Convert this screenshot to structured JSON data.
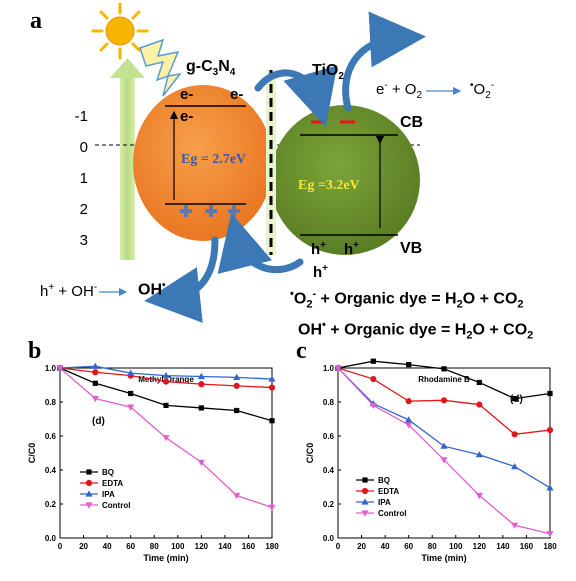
{
  "figure": {
    "panel_a": "a",
    "panel_b": "b",
    "panel_c": "c"
  },
  "diagram": {
    "material_left": "g-C3N4",
    "material_right": "TiO2",
    "axis_ticks": [
      "-1",
      "0",
      "1",
      "2",
      "3"
    ],
    "electron_left_1": "e-",
    "electron_left_2": "e-",
    "electron_left_3": "e-",
    "gap_left": "Eg = 2.7eV",
    "gap_right": "Eg =3.2eV",
    "cb_label": "CB",
    "vb_label": "VB",
    "hole_1": "h+",
    "hole_2": "h+",
    "hole_3": "h+",
    "reaction_superoxide": "e- + O2 → •O2-",
    "reaction_hydroxyl": "h+ + OH- → OH•",
    "equation_1": "•O2- + Organic dye = H2O + CO2",
    "equation_2": "OH• + Organic dye = H2O + CO2",
    "colors": {
      "left_sphere": "#f28a2e",
      "right_sphere": "#6a8f2e",
      "arrow": "#3b78b5",
      "sun": "#f7b500"
    }
  },
  "chart_data": [
    {
      "type": "line",
      "title": "Methyl Orange",
      "inset_label": "(d)",
      "xlabel": "Time (min)",
      "ylabel": "C/C0",
      "x": [
        0,
        30,
        60,
        90,
        120,
        150,
        180
      ],
      "xlim": [
        0,
        180
      ],
      "ylim": [
        0.0,
        1.0
      ],
      "xticks": [
        "0",
        "20",
        "40",
        "60",
        "80",
        "100",
        "120",
        "140",
        "160",
        "180"
      ],
      "yticks": [
        "0.0",
        "0.2",
        "0.4",
        "0.6",
        "0.8",
        "1.0"
      ],
      "legend_position": "bottom-left",
      "series": [
        {
          "name": "BQ",
          "color": "#000000",
          "marker": "square",
          "values": [
            1.0,
            0.91,
            0.85,
            0.78,
            0.765,
            0.75,
            0.69
          ]
        },
        {
          "name": "EDTA",
          "color": "#e3161b",
          "marker": "circle",
          "values": [
            1.0,
            0.975,
            0.955,
            0.92,
            0.905,
            0.895,
            0.885
          ]
        },
        {
          "name": "IPA",
          "color": "#3366cc",
          "marker": "triangle-up",
          "values": [
            1.0,
            1.01,
            0.97,
            0.955,
            0.95,
            0.945,
            0.935
          ]
        },
        {
          "name": "Control",
          "color": "#e060d0",
          "marker": "triangle-down",
          "values": [
            1.0,
            0.82,
            0.77,
            0.59,
            0.445,
            0.25,
            0.18
          ]
        }
      ]
    },
    {
      "type": "line",
      "title": "Rhodamine B",
      "inset_label": "(d)",
      "xlabel": "Time (min)",
      "ylabel": "C/C0",
      "x": [
        0,
        30,
        60,
        90,
        120,
        150,
        180
      ],
      "xlim": [
        0,
        180
      ],
      "ylim": [
        0.0,
        1.0
      ],
      "xticks": [
        "0",
        "20",
        "40",
        "60",
        "80",
        "100",
        "120",
        "140",
        "160",
        "180"
      ],
      "yticks": [
        "0.0",
        "0.2",
        "0.4",
        "0.6",
        "0.8",
        "1.0"
      ],
      "legend_position": "bottom-left",
      "series": [
        {
          "name": "BQ",
          "color": "#000000",
          "marker": "square",
          "values": [
            1.0,
            1.04,
            1.02,
            0.995,
            0.915,
            0.82,
            0.85
          ]
        },
        {
          "name": "EDTA",
          "color": "#e3161b",
          "marker": "circle",
          "values": [
            1.0,
            0.935,
            0.805,
            0.81,
            0.785,
            0.61,
            0.635
          ]
        },
        {
          "name": "IPA",
          "color": "#3366cc",
          "marker": "triangle-up",
          "values": [
            1.0,
            0.79,
            0.695,
            0.54,
            0.49,
            0.42,
            0.295
          ]
        },
        {
          "name": "Control",
          "color": "#e060d0",
          "marker": "triangle-down",
          "values": [
            1.0,
            0.78,
            0.665,
            0.46,
            0.25,
            0.075,
            0.025
          ]
        }
      ]
    }
  ]
}
